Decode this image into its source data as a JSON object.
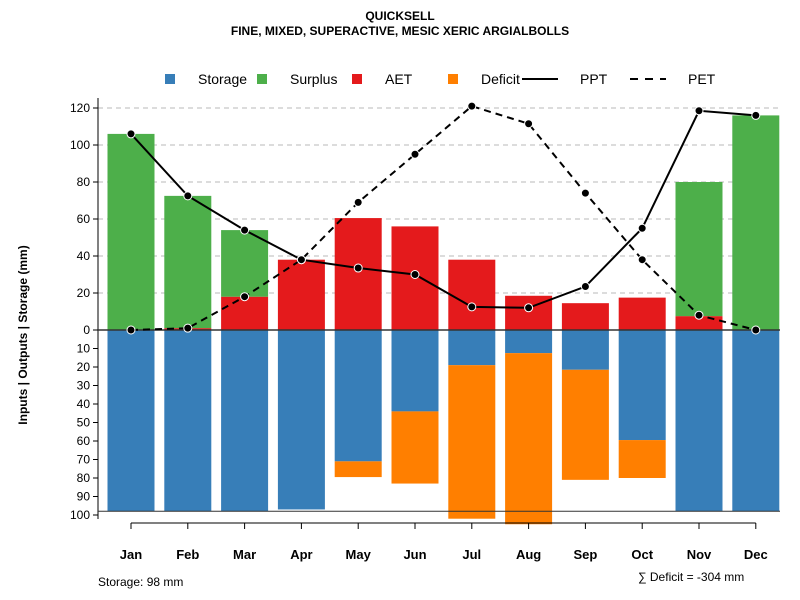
{
  "chart_data": {
    "type": "bar",
    "title": "QUICKSELL",
    "subtitle": "FINE, MIXED, SUPERACTIVE, MESIC XERIC ARGIALBOLLS",
    "ylabel": "Inputs | Outputs | Storage    (mm)",
    "ylim_top": [
      0,
      120
    ],
    "ylim_bottom": [
      0,
      100
    ],
    "yticks_top": [
      "0",
      "20",
      "40",
      "60",
      "80",
      "100",
      "120"
    ],
    "yticks_bottom": [
      "10",
      "20",
      "30",
      "40",
      "50",
      "60",
      "70",
      "80",
      "90",
      "100"
    ],
    "categories": [
      "Jan",
      "Feb",
      "Mar",
      "Apr",
      "May",
      "Jun",
      "Jul",
      "Aug",
      "Sep",
      "Oct",
      "Nov",
      "Dec"
    ],
    "legend": [
      "Storage",
      "Surplus",
      "AET",
      "Deficit",
      "PPT",
      "PET"
    ],
    "legend_position": "top",
    "colors": {
      "Storage": "#377EB8",
      "Surplus": "#4DAF4A",
      "AET": "#E41A1C",
      "Deficit": "#FF7F00"
    },
    "series": [
      {
        "name": "AET",
        "values": [
          0,
          1,
          18,
          38,
          60.5,
          56,
          38,
          18.5,
          14.5,
          17.5,
          7.5,
          0
        ]
      },
      {
        "name": "Surplus",
        "values": [
          106,
          71.5,
          36,
          0,
          0,
          0,
          0,
          0,
          0,
          0,
          72.5,
          116
        ]
      },
      {
        "name": "Storage",
        "values": [
          98,
          98,
          98,
          97,
          71,
          44,
          19,
          12.5,
          21.5,
          59.5,
          98,
          98
        ]
      },
      {
        "name": "Deficit",
        "values": [
          0,
          0,
          0,
          0,
          8.5,
          39,
          83,
          92.5,
          59.5,
          20.5,
          0,
          0
        ]
      },
      {
        "name": "PPT",
        "values": [
          106,
          72.5,
          54,
          38,
          33.5,
          30,
          12.5,
          12,
          23.5,
          55,
          118.5,
          116
        ]
      },
      {
        "name": "PET",
        "values": [
          0,
          1,
          18,
          38,
          69,
          95,
          121,
          111.5,
          74,
          38,
          8,
          0
        ]
      }
    ],
    "annotations": {
      "storage": "Storage: 98 mm",
      "deficit": "∑ Deficit = -304 mm"
    }
  }
}
